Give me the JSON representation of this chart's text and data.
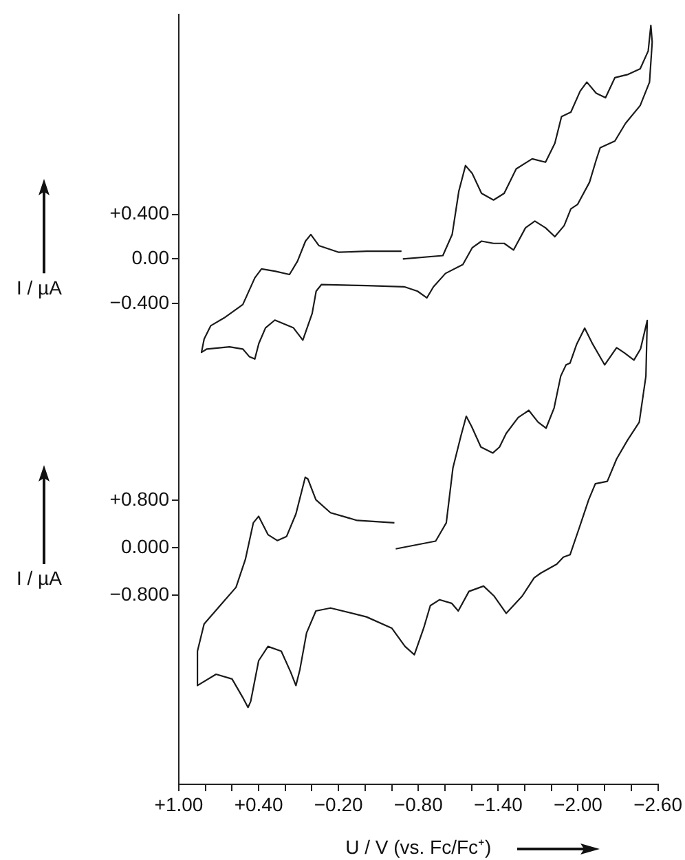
{
  "chart_data": [
    {
      "type": "line",
      "ylabel": "I / µA",
      "xlim": [
        1.0,
        -2.6
      ],
      "ylim": [
        -1.0,
        2.2
      ],
      "tick_labels": "y",
      "grid": false,
      "legend": false,
      "marker": "none",
      "line_style": "solid",
      "yticks": [
        {
          "value": 0.4,
          "label": "+0.400"
        },
        {
          "value": 0,
          "label": "0.00"
        },
        {
          "value": -0.4,
          "label": "−0.400"
        }
      ],
      "series": [
        {
          "color": "#1a1a1a",
          "x": [
            -0.68,
            -0.98,
            -1.05,
            -1.1,
            -1.15,
            -1.2,
            -1.27,
            -1.36,
            -1.44,
            -1.53,
            -1.65,
            -1.75,
            -1.82,
            -1.87,
            -1.94,
            -2.01,
            -2.06,
            -2.13,
            -2.2,
            -2.27,
            -2.37,
            -2.46,
            -2.52,
            -2.54,
            -2.55,
            -2.53,
            -2.46,
            -2.35,
            -2.27,
            -2.16,
            -2.13,
            -2.08,
            -1.99,
            -1.94,
            -1.89,
            -1.82,
            -1.75,
            -1.67,
            -1.6,
            -1.51,
            -1.44,
            -1.36,
            -1.27,
            -1.2,
            -1.13,
            -1.0,
            -0.91,
            -0.86,
            -0.79,
            -0.69,
            -0.41,
            -0.07,
            -0.03,
            0.0,
            0.07,
            0.14,
            0.28,
            0.35,
            0.4,
            0.43,
            0.47,
            0.52,
            0.62,
            0.79,
            0.83,
            0.81,
            0.76,
            0.66,
            0.52,
            0.43,
            0.38,
            0.28,
            0.17,
            0.11,
            0.05,
            0.01,
            -0.05,
            -0.2,
            -0.41,
            -0.67
          ],
          "values": [
            0.0,
            0.03,
            0.22,
            0.61,
            0.84,
            0.77,
            0.59,
            0.53,
            0.59,
            0.81,
            0.9,
            0.87,
            1.04,
            1.28,
            1.32,
            1.51,
            1.59,
            1.49,
            1.45,
            1.63,
            1.66,
            1.71,
            1.87,
            2.1,
            1.95,
            1.59,
            1.38,
            1.22,
            1.06,
            1.0,
            0.89,
            0.69,
            0.49,
            0.45,
            0.3,
            0.2,
            0.28,
            0.34,
            0.28,
            0.08,
            0.14,
            0.14,
            0.16,
            0.1,
            -0.05,
            -0.13,
            -0.25,
            -0.35,
            -0.29,
            -0.25,
            -0.24,
            -0.23,
            -0.29,
            -0.49,
            -0.73,
            -0.62,
            -0.55,
            -0.62,
            -0.76,
            -0.9,
            -0.88,
            -0.81,
            -0.79,
            -0.81,
            -0.84,
            -0.72,
            -0.6,
            -0.53,
            -0.41,
            -0.17,
            -0.09,
            -0.11,
            -0.14,
            -0.02,
            0.16,
            0.22,
            0.12,
            0.06,
            0.07,
            0.07
          ]
        }
      ]
    },
    {
      "type": "line",
      "xlabel": "U / V (vs. Fc/Fc⁺)",
      "ylabel": "I / µA",
      "xlim": [
        1.0,
        -2.6
      ],
      "ylim": [
        -4.0,
        4.0
      ],
      "grid": false,
      "legend": false,
      "marker": "none",
      "line_style": "solid",
      "xticks": [
        {
          "value": 1.0,
          "label": "+1.00"
        },
        {
          "value": 0.8,
          "label": null
        },
        {
          "value": 0.6,
          "label": null
        },
        {
          "value": 0.4,
          "label": "+0.40"
        },
        {
          "value": 0.2,
          "label": null
        },
        {
          "value": 0,
          "label": null
        },
        {
          "value": -0.2,
          "label": "−0.20"
        },
        {
          "value": -0.4,
          "label": null
        },
        {
          "value": -0.6,
          "label": null
        },
        {
          "value": -0.8,
          "label": "−0.80"
        },
        {
          "value": -1.0,
          "label": null
        },
        {
          "value": -1.2,
          "label": null
        },
        {
          "value": -1.4,
          "label": "−1.40"
        },
        {
          "value": -1.6,
          "label": null
        },
        {
          "value": -1.8,
          "label": null
        },
        {
          "value": -2.0,
          "label": "−2.00"
        },
        {
          "value": -2.2,
          "label": null
        },
        {
          "value": -2.4,
          "label": null
        },
        {
          "value": -2.6,
          "label": "−2.60"
        }
      ],
      "yticks": [
        {
          "value": 0.8,
          "label": "+0.800"
        },
        {
          "value": 0,
          "label": "0.000"
        },
        {
          "value": -0.8,
          "label": "−0.800"
        }
      ],
      "series": [
        {
          "color": "#1a1a1a",
          "x": [
            -0.63,
            -0.93,
            -1.01,
            -1.06,
            -1.12,
            -1.16,
            -1.2,
            -1.27,
            -1.36,
            -1.41,
            -1.46,
            -1.55,
            -1.63,
            -1.7,
            -1.76,
            -1.82,
            -1.87,
            -1.91,
            -1.94,
            -1.99,
            -2.05,
            -2.11,
            -2.2,
            -2.29,
            -2.35,
            -2.42,
            -2.47,
            -2.52,
            -2.51,
            -2.46,
            -2.37,
            -2.29,
            -2.22,
            -2.13,
            -2.08,
            -2.01,
            -1.94,
            -1.89,
            -1.84,
            -1.72,
            -1.67,
            -1.58,
            -1.46,
            -1.37,
            -1.29,
            -1.18,
            -1.1,
            -1.05,
            -0.96,
            -0.89,
            -0.84,
            -0.77,
            -0.7,
            -0.6,
            -0.41,
            -0.14,
            -0.03,
            0.04,
            0.09,
            0.12,
            0.16,
            0.23,
            0.33,
            0.4,
            0.46,
            0.48,
            0.52,
            0.6,
            0.72,
            0.86,
            0.86,
            0.81,
            0.69,
            0.57,
            0.5,
            0.44,
            0.4,
            0.33,
            0.26,
            0.19,
            0.12,
            0.05,
            0.03,
            -0.03,
            -0.14,
            -0.34,
            -0.62
          ],
          "values": [
            -0.02,
            0.11,
            0.42,
            1.35,
            1.89,
            2.22,
            2.05,
            1.7,
            1.6,
            1.7,
            1.93,
            2.2,
            2.32,
            2.12,
            2.02,
            2.36,
            2.9,
            3.09,
            3.12,
            3.44,
            3.71,
            3.44,
            3.09,
            3.38,
            3.29,
            3.17,
            3.36,
            3.84,
            2.9,
            2.12,
            1.81,
            1.5,
            1.12,
            1.08,
            0.81,
            0.34,
            -0.12,
            -0.16,
            -0.28,
            -0.43,
            -0.51,
            -0.82,
            -1.11,
            -0.82,
            -0.65,
            -0.74,
            -1.07,
            -0.94,
            -0.88,
            -0.98,
            -1.36,
            -1.81,
            -1.67,
            -1.36,
            -1.17,
            -1.02,
            -1.07,
            -1.44,
            -2.06,
            -2.33,
            -2.1,
            -1.75,
            -1.67,
            -1.91,
            -2.6,
            -2.7,
            -2.53,
            -2.22,
            -2.14,
            -2.33,
            -1.75,
            -1.29,
            -0.98,
            -0.67,
            -0.2,
            0.42,
            0.53,
            0.22,
            0.12,
            0.19,
            0.57,
            1.19,
            1.16,
            0.81,
            0.59,
            0.46,
            0.42
          ]
        }
      ]
    }
  ]
}
